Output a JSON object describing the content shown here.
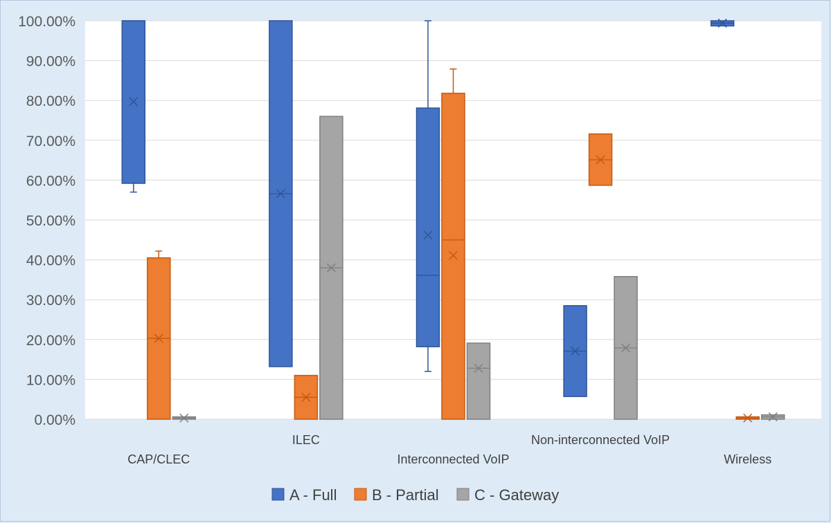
{
  "chart_data": {
    "type": "box",
    "categories": [
      "CAP/CLEC",
      "ILEC",
      "Interconnected VoIP",
      "Non-interconnected VoIP",
      "Wireless"
    ],
    "ylim": [
      0,
      100
    ],
    "yticks": [
      "0.00%",
      "10.00%",
      "20.00%",
      "30.00%",
      "40.00%",
      "50.00%",
      "60.00%",
      "70.00%",
      "80.00%",
      "90.00%",
      "100.00%"
    ],
    "grid": true,
    "legend_position": "bottom",
    "series": [
      {
        "name": "A - Full",
        "color": "#4472c4",
        "boxes": [
          {
            "category": "CAP/CLEC",
            "whisker_low": 57,
            "q1": 59.2,
            "median": 100,
            "q3": 100,
            "whisker_high": 100,
            "mean": 79.7
          },
          {
            "category": "ILEC",
            "whisker_low": 13.2,
            "q1": 13.2,
            "median": 56.6,
            "q3": 100,
            "whisker_high": 100,
            "mean": 56.6
          },
          {
            "category": "Interconnected VoIP",
            "whisker_low": 12,
            "q1": 18.2,
            "median": 36.1,
            "q3": 78.1,
            "whisker_high": 100,
            "mean": 46.2
          },
          {
            "category": "Non-interconnected VoIP",
            "whisker_low": 5.7,
            "q1": 5.7,
            "median": 17.1,
            "q3": 28.5,
            "whisker_high": 28.5,
            "mean": 17.1
          },
          {
            "category": "Wireless",
            "whisker_low": 98.7,
            "q1": 98.7,
            "median": 99.4,
            "q3": 100,
            "whisker_high": 100,
            "mean": 99.4
          }
        ]
      },
      {
        "name": "B - Partial",
        "color": "#ed7d31",
        "boxes": [
          {
            "category": "CAP/CLEC",
            "whisker_low": 0,
            "q1": 0,
            "median": 20.3,
            "q3": 40.5,
            "whisker_high": 42.2,
            "mean": 20.3
          },
          {
            "category": "ILEC",
            "whisker_low": 0,
            "q1": 0,
            "median": 5.5,
            "q3": 11,
            "whisker_high": 11,
            "mean": 5.5
          },
          {
            "category": "Interconnected VoIP",
            "whisker_low": 0,
            "q1": 0,
            "median": 45,
            "q3": 81.8,
            "whisker_high": 87.9,
            "mean": 41.1
          },
          {
            "category": "Non-interconnected VoIP",
            "whisker_low": 58.7,
            "q1": 58.7,
            "median": 65.1,
            "q3": 71.6,
            "whisker_high": 71.6,
            "mean": 65.1
          },
          {
            "category": "Wireless",
            "whisker_low": 0,
            "q1": 0,
            "median": 0.3,
            "q3": 0.6,
            "whisker_high": 0.6,
            "mean": 0.3
          }
        ]
      },
      {
        "name": "C - Gateway",
        "color": "#a5a5a5",
        "boxes": [
          {
            "category": "CAP/CLEC",
            "whisker_low": 0,
            "q1": 0,
            "median": 0.3,
            "q3": 0.6,
            "whisker_high": 0.6,
            "mean": 0.3
          },
          {
            "category": "ILEC",
            "whisker_low": 0,
            "q1": 0,
            "median": 38,
            "q3": 76,
            "whisker_high": 76,
            "mean": 38
          },
          {
            "category": "Interconnected VoIP",
            "whisker_low": 0,
            "q1": 0,
            "median": 12.8,
            "q3": 19.1,
            "whisker_high": 19.1,
            "mean": 12.8
          },
          {
            "category": "Non-interconnected VoIP",
            "whisker_low": 0,
            "q1": 0,
            "median": 17.9,
            "q3": 35.8,
            "whisker_high": 35.8,
            "mean": 17.9
          },
          {
            "category": "Wireless",
            "whisker_low": 0,
            "q1": 0,
            "median": 0.6,
            "q3": 1.1,
            "whisker_high": 1.1,
            "mean": 0.6
          }
        ]
      }
    ]
  }
}
